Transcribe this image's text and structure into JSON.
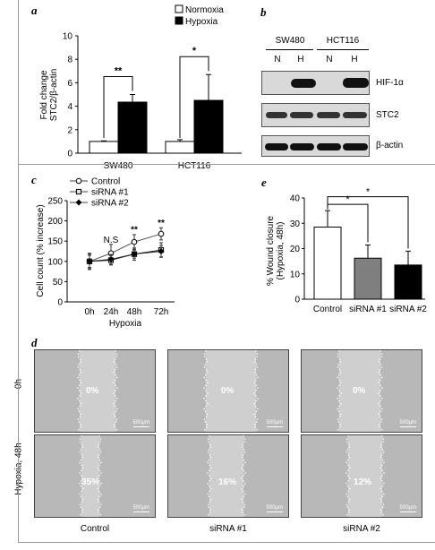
{
  "panels": {
    "a": {
      "label": "a"
    },
    "b": {
      "label": "b"
    },
    "c": {
      "label": "c"
    },
    "d": {
      "label": "d"
    },
    "e": {
      "label": "e"
    }
  },
  "chart_data": [
    {
      "id": "a",
      "type": "bar",
      "categories": [
        "SW480",
        "HCT116"
      ],
      "series": [
        {
          "name": "Normoxia",
          "values": [
            1.0,
            1.0
          ],
          "errors": [
            0.05,
            0.15
          ],
          "color": "#ffffff"
        },
        {
          "name": "Hypoxia",
          "values": [
            4.35,
            4.5
          ],
          "errors": [
            0.65,
            2.2
          ],
          "color": "#000000"
        }
      ],
      "ylabel": "Fold change STC2/β-actin",
      "ylabel_lines": [
        "Fold change",
        "STC2/β-actin"
      ],
      "ylim": [
        0,
        10
      ],
      "yticks": [
        "0",
        "2",
        "4",
        "6",
        "8",
        "10"
      ],
      "significance": [
        "**",
        "*"
      ],
      "legend": "top-right"
    },
    {
      "id": "c",
      "type": "line",
      "x": [
        "0h",
        "24h",
        "48h",
        "72h"
      ],
      "series": [
        {
          "name": "Control",
          "values": [
            100,
            120,
            148,
            168
          ],
          "errors": [
            18,
            22,
            18,
            15
          ],
          "marker": "open-circle"
        },
        {
          "name": "siRNA #1",
          "values": [
            100,
            103,
            118,
            128
          ],
          "errors": [
            15,
            12,
            10,
            18
          ],
          "marker": "open-square"
        },
        {
          "name": "siRNA #2",
          "values": [
            100,
            105,
            118,
            125
          ],
          "errors": [
            20,
            12,
            15,
            14
          ],
          "marker": "filled-diamond"
        }
      ],
      "xlabel": "Hypoxia",
      "ylabel": "Cell count (% increase)",
      "ylim": [
        0,
        250
      ],
      "yticks": [
        "0",
        "50",
        "100",
        "150",
        "200",
        "250"
      ],
      "annotations": [
        "N.S",
        "**",
        "**"
      ],
      "legend": "top-left"
    },
    {
      "id": "e",
      "type": "bar",
      "categories": [
        "Control",
        "siRNA #1",
        "siRNA #2"
      ],
      "values": [
        28.5,
        16.2,
        13.5
      ],
      "errors": [
        6.5,
        5.2,
        5.5
      ],
      "colors": [
        "#ffffff",
        "#7f7f7f",
        "#000000"
      ],
      "ylabel": "% Wound closure (Hypoxia, 48h)",
      "ylabel_lines": [
        "% Wound closure",
        "(Hypoxia, 48h)"
      ],
      "ylim": [
        0,
        40
      ],
      "yticks": [
        "0",
        "10",
        "20",
        "30",
        "40"
      ],
      "significance": [
        "*",
        "*"
      ]
    }
  ],
  "western_blot": {
    "cell_lines": [
      "SW480",
      "HCT116"
    ],
    "lanes": [
      "N",
      "H",
      "N",
      "H"
    ],
    "proteins": [
      "HIF-1α",
      "STC2",
      "β-actin"
    ]
  },
  "wound": {
    "row_labels": [
      "0h",
      "Hypoxia, 48h"
    ],
    "col_labels": [
      "Control",
      "siRNA #1",
      "siRNA #2"
    ],
    "row0_pct": [
      "0%",
      "0%",
      "0%"
    ],
    "row1_pct": [
      "35%",
      "16%",
      "12%"
    ],
    "scale": "500μm"
  }
}
